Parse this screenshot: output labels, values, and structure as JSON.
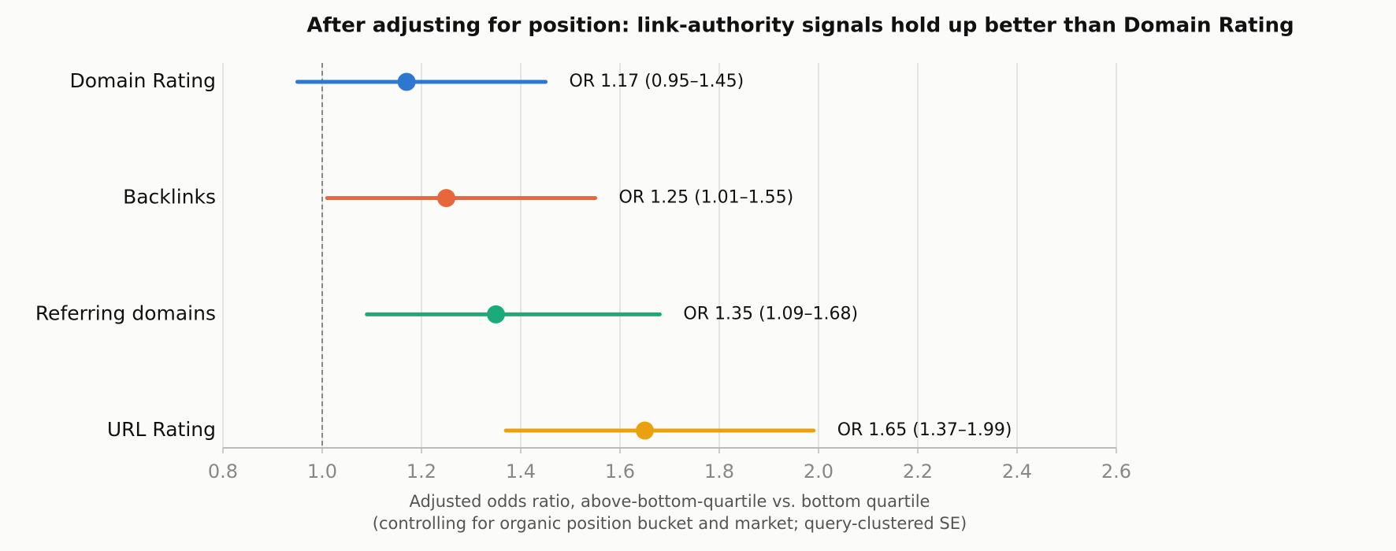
{
  "chart_data": {
    "type": "forest",
    "title": "After adjusting for position: link-authority signals hold up better than Domain Rating",
    "categories": [
      "Domain Rating",
      "Backlinks",
      "Referring domains",
      "URL Rating"
    ],
    "values": [
      1.17,
      1.25,
      1.35,
      1.65
    ],
    "ci_low": [
      0.95,
      1.01,
      1.09,
      1.37
    ],
    "ci_high": [
      1.45,
      1.55,
      1.68,
      1.99
    ],
    "value_labels": [
      "OR 1.17 (0.95–1.45)",
      "OR 1.25 (1.01–1.55)",
      "OR 1.35 (1.09–1.68)",
      "OR 1.65 (1.37–1.99)"
    ],
    "colors": [
      "#2e77d0",
      "#e8673a",
      "#1aab7a",
      "#e9a10e"
    ],
    "xlim": [
      0.8,
      2.6
    ],
    "xticks": [
      0.8,
      {
        "value": 1,
        "label": "1.0"
      },
      1.2,
      1.4,
      1.6,
      1.8,
      {
        "value": 2,
        "label": "2.0"
      },
      2.2,
      2.4,
      2.6
    ],
    "reference_line": 1,
    "grid": true,
    "xlabel": [
      "Adjusted odds ratio, above-bottom-quartile vs. bottom quartile",
      "(controlling for organic position bucket and market; query-clustered SE)"
    ]
  }
}
